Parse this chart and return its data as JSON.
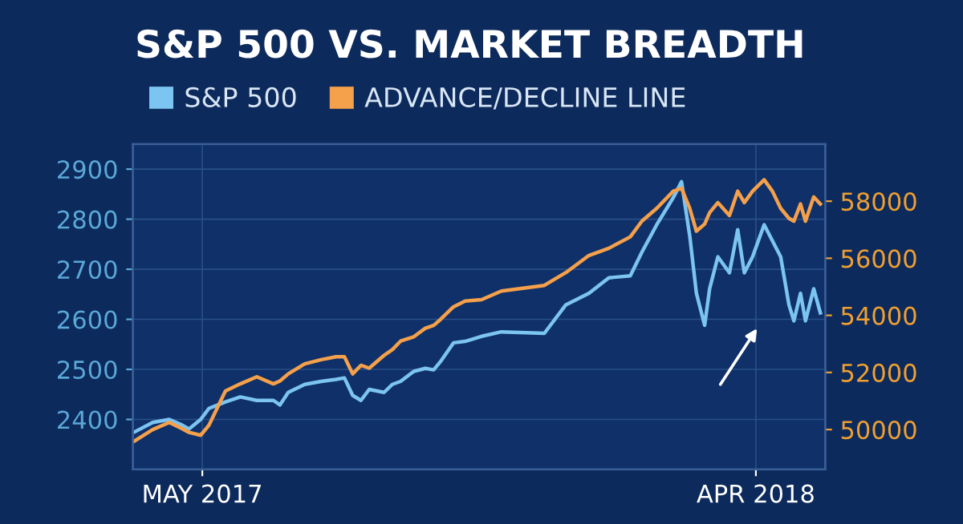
{
  "chart_data": {
    "type": "line",
    "title": "S&P 500 VS. MARKET BREADTH",
    "x": [
      "2017-03-21",
      "2017-04-01",
      "2017-04-11",
      "2017-04-18",
      "2017-04-23",
      "2017-04-30",
      "2017-05-05",
      "2017-05-15",
      "2017-05-24",
      "2017-06-03",
      "2017-06-13",
      "2017-06-17",
      "2017-06-22",
      "2017-07-02",
      "2017-07-12",
      "2017-07-21",
      "2017-07-26",
      "2017-07-31",
      "2017-08-05",
      "2017-08-10",
      "2017-08-19",
      "2017-08-24",
      "2017-08-29",
      "2017-09-06",
      "2017-09-13",
      "2017-09-18",
      "2017-09-22",
      "2017-09-30",
      "2017-10-07",
      "2017-10-17",
      "2017-10-29",
      "2017-11-24",
      "2017-12-07",
      "2017-12-21",
      "2018-01-02",
      "2018-01-15",
      "2018-01-22",
      "2018-01-31",
      "2018-02-10",
      "2018-02-15",
      "2018-02-20",
      "2018-02-24",
      "2018-03-01",
      "2018-03-04",
      "2018-03-09",
      "2018-03-16",
      "2018-03-21",
      "2018-03-25",
      "2018-03-30",
      "2018-04-06",
      "2018-04-11",
      "2018-04-16",
      "2018-04-21",
      "2018-04-24",
      "2018-04-28",
      "2018-05-01",
      "2018-05-06",
      "2018-05-10"
    ],
    "series": [
      {
        "name": "S&P 500",
        "color": "#7cc4f2",
        "values": [
          2375,
          2394,
          2400,
          2390,
          2381,
          2400,
          2422,
          2435,
          2445,
          2438,
          2438,
          2429,
          2454,
          2470,
          2476,
          2480,
          2483,
          2448,
          2438,
          2460,
          2454,
          2470,
          2476,
          2496,
          2502,
          2499,
          2515,
          2553,
          2556,
          2566,
          2575,
          2572,
          2629,
          2652,
          2683,
          2687,
          2734,
          2789,
          2843,
          2875,
          2766,
          2652,
          2588,
          2661,
          2725,
          2693,
          2779,
          2693,
          2725,
          2789,
          2757,
          2725,
          2629,
          2597,
          2652,
          2597,
          2661,
          2613
        ]
      },
      {
        "name": "ADVANCE/DECLINE LINE",
        "color": "#f5a04a",
        "axis": "y2",
        "values": [
          49600,
          50000,
          50250,
          50050,
          49900,
          49800,
          50150,
          51350,
          51600,
          51850,
          51600,
          51700,
          51950,
          52300,
          52450,
          52550,
          52550,
          51950,
          52250,
          52150,
          52600,
          52800,
          53100,
          53250,
          53550,
          53650,
          53850,
          54300,
          54500,
          54550,
          54850,
          55050,
          55500,
          56100,
          56350,
          56750,
          57300,
          57750,
          58350,
          58450,
          57750,
          56950,
          57200,
          57600,
          57950,
          57500,
          58350,
          57950,
          58350,
          58750,
          58350,
          57750,
          57400,
          57300,
          57900,
          57300,
          58150,
          57900
        ]
      }
    ],
    "xlim": [
      "2017-03-20",
      "2018-05-13"
    ],
    "xticks": [
      {
        "value": "2017-05-01",
        "label": "MAY 2017"
      },
      {
        "value": "2018-04-01",
        "label": "APR 2018"
      }
    ],
    "ylim": [
      2300,
      2950
    ],
    "yticks": [
      2400,
      2500,
      2600,
      2700,
      2800,
      2900
    ],
    "y2lim": [
      48600,
      60000
    ],
    "y2ticks": [
      50000,
      52000,
      54000,
      56000,
      58000
    ],
    "grid": true,
    "legend": "top left"
  }
}
